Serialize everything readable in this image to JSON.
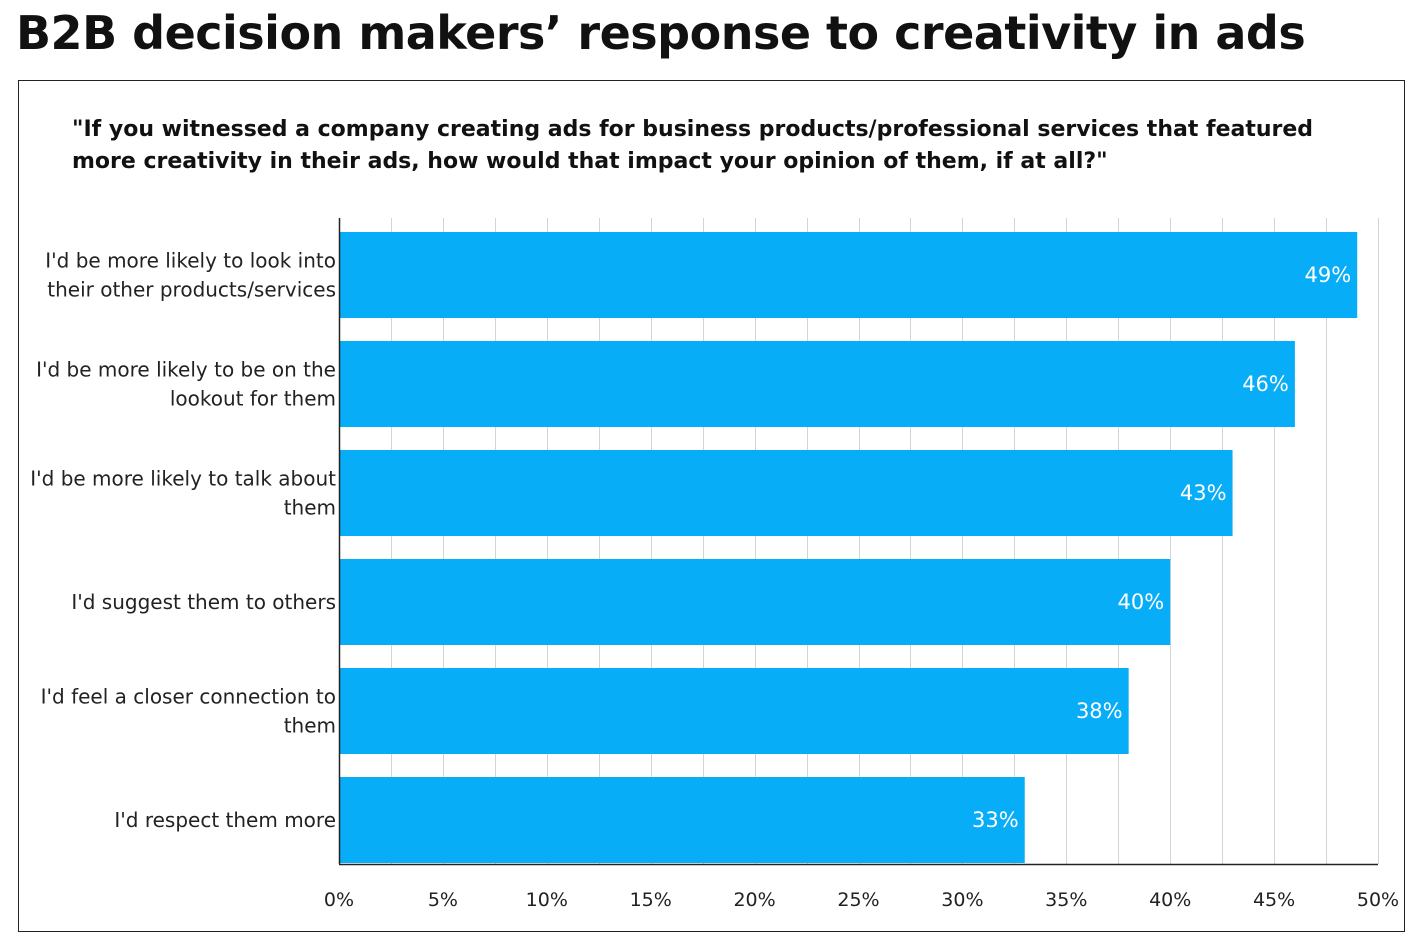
{
  "page": {
    "title": "B2B decision makers’ response to creativity in ads",
    "question": "\"If you witnessed a company creating ads for business products/professional services that featured more creativity in their ads, how would that impact your opinion of them, if at all?\""
  },
  "colors": {
    "bar": "#08ADF7",
    "grid": "#d4d4d4",
    "axis": "#222222",
    "value_text": "#ffffff"
  },
  "chart_data": {
    "type": "bar",
    "orientation": "horizontal",
    "categories": [
      [
        "I'd be more likely to look into",
        "their other products/services"
      ],
      [
        "I'd be more likely to be on the",
        "lookout for them"
      ],
      [
        "I'd be more likely to talk about",
        "them"
      ],
      [
        "I'd suggest them to others"
      ],
      [
        "I'd feel a closer connection to",
        "them"
      ],
      [
        "I'd respect them more"
      ]
    ],
    "values": [
      49,
      46,
      43,
      40,
      38,
      33
    ],
    "value_labels": [
      "49%",
      "46%",
      "43%",
      "40%",
      "38%",
      "33%"
    ],
    "xlim": [
      0,
      50
    ],
    "x_ticks": [
      0,
      5,
      10,
      15,
      20,
      25,
      30,
      35,
      40,
      45,
      50
    ],
    "x_tick_labels": [
      "0%",
      "5%",
      "10%",
      "15%",
      "20%",
      "25%",
      "30%",
      "35%",
      "40%",
      "45%",
      "50%"
    ],
    "minor_grid_step": 2.5,
    "grid": true,
    "legend": "none"
  }
}
